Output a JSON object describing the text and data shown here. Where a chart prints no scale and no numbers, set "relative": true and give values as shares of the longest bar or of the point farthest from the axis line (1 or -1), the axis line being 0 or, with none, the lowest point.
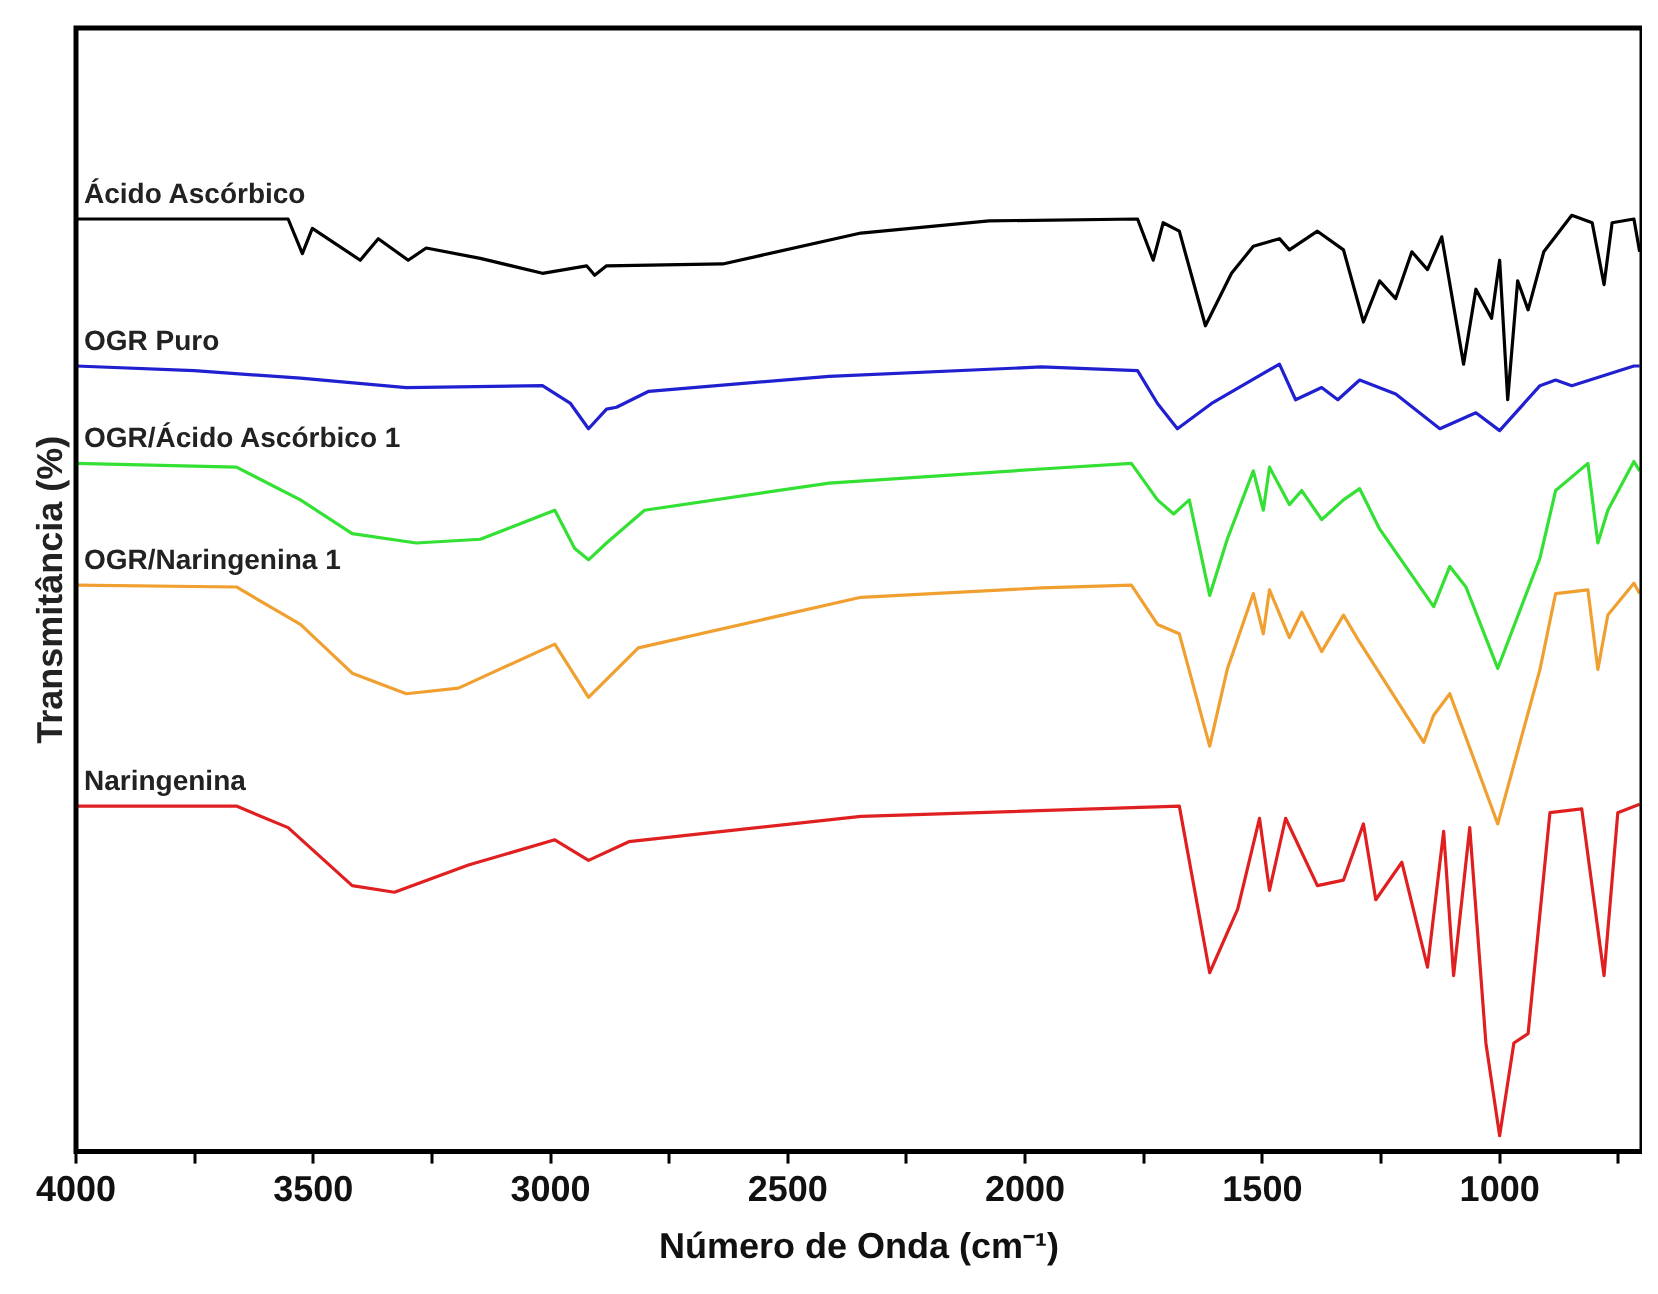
{
  "chart_data": {
    "type": "line",
    "relative": true,
    "xlabel": "Número de Onda (cm⁻¹)",
    "ylabel": "Transmitância (%)",
    "xlim": [
      4000,
      700
    ],
    "xticks": [
      4000,
      {
        "value": 3750,
        "label": null
      },
      3500,
      {
        "value": 3250,
        "label": null
      },
      3000,
      {
        "value": 2750,
        "label": null
      },
      2500,
      {
        "value": 2250,
        "label": null
      },
      2000,
      {
        "value": 1750,
        "label": null
      },
      1500,
      {
        "value": 1250,
        "label": null
      },
      1000,
      {
        "value": 750,
        "label": null
      }
    ],
    "grid": false,
    "legend": false,
    "marker": "none",
    "series": [
      {
        "name": "Ácido Ascórbico",
        "color": "#000000",
        "x": [
          4000,
          3553,
          3523,
          3502,
          3401,
          3363,
          3300,
          3262,
          3148,
          3017,
          2924,
          2907,
          2882,
          2637,
          2346,
          2076,
          1763,
          1730,
          1709,
          1675,
          1620,
          1565,
          1519,
          1464,
          1443,
          1384,
          1329,
          1287,
          1253,
          1219,
          1185,
          1152,
          1122,
          1076,
          1050,
          1017,
          1000,
          983,
          962,
          940,
          907,
          848,
          805,
          780,
          763,
          717,
          705
        ],
        "values": [
          0.996,
          0.996,
          0.959,
          0.986,
          0.952,
          0.975,
          0.952,
          0.965,
          0.954,
          0.938,
          0.946,
          0.936,
          0.946,
          0.948,
          0.981,
          0.994,
          0.996,
          0.952,
          0.992,
          0.983,
          0.882,
          0.938,
          0.967,
          0.975,
          0.963,
          0.983,
          0.963,
          0.886,
          0.93,
          0.911,
          0.961,
          0.942,
          0.977,
          0.841,
          0.921,
          0.89,
          0.952,
          0.803,
          0.93,
          0.899,
          0.961,
          1,
          0.992,
          0.926,
          0.992,
          0.996,
          0.961
        ]
      },
      {
        "name": "OGR Puro",
        "color": "#2020d0",
        "x": [
          4000,
          3751,
          3527,
          3304,
          3017,
          2958,
          2920,
          2882,
          2861,
          2793,
          2413,
          1966,
          1763,
          1721,
          1679,
          1607,
          1464,
          1430,
          1375,
          1341,
          1295,
          1219,
          1126,
          1050,
          1000,
          915,
          882,
          848,
          717,
          705
        ],
        "values": [
          0.839,
          0.834,
          0.826,
          0.816,
          0.818,
          0.799,
          0.772,
          0.793,
          0.795,
          0.812,
          0.828,
          0.838,
          0.834,
          0.799,
          0.772,
          0.799,
          0.841,
          0.803,
          0.816,
          0.803,
          0.824,
          0.809,
          0.772,
          0.789,
          0.77,
          0.818,
          0.824,
          0.818,
          0.839,
          0.839
        ]
      },
      {
        "name": "OGR/Ácido Ascórbico 1",
        "color": "#33e033",
        "x": [
          4000,
          3662,
          3527,
          3418,
          3283,
          3148,
          2991,
          2949,
          2920,
          2882,
          2802,
          2413,
          1966,
          1776,
          1721,
          1687,
          1654,
          1611,
          1574,
          1519,
          1498,
          1485,
          1443,
          1417,
          1375,
          1329,
          1295,
          1253,
          1139,
          1105,
          1071,
          1004,
          915,
          882,
          814,
          793,
          772,
          717,
          705
        ],
        "values": [
          0.735,
          0.731,
          0.696,
          0.66,
          0.65,
          0.654,
          0.685,
          0.644,
          0.632,
          0.65,
          0.685,
          0.714,
          0.729,
          0.735,
          0.696,
          0.681,
          0.696,
          0.594,
          0.654,
          0.727,
          0.685,
          0.731,
          0.691,
          0.706,
          0.675,
          0.696,
          0.708,
          0.665,
          0.582,
          0.625,
          0.603,
          0.516,
          0.634,
          0.706,
          0.735,
          0.65,
          0.685,
          0.737,
          0.727
        ]
      },
      {
        "name": "OGR/Naringenina 1",
        "color": "#f0a030",
        "x": [
          4000,
          3662,
          3527,
          3418,
          3304,
          3194,
          2991,
          2920,
          2815,
          2346,
          1966,
          1776,
          1721,
          1675,
          1611,
          1574,
          1519,
          1498,
          1485,
          1443,
          1417,
          1375,
          1329,
          1295,
          1160,
          1139,
          1105,
          1004,
          915,
          882,
          814,
          793,
          772,
          717,
          705
        ],
        "values": [
          0.605,
          0.603,
          0.563,
          0.511,
          0.489,
          0.495,
          0.542,
          0.485,
          0.538,
          0.592,
          0.602,
          0.605,
          0.563,
          0.553,
          0.433,
          0.515,
          0.596,
          0.553,
          0.6,
          0.549,
          0.576,
          0.534,
          0.573,
          0.544,
          0.437,
          0.466,
          0.489,
          0.35,
          0.515,
          0.596,
          0.6,
          0.515,
          0.573,
          0.607,
          0.596
        ]
      },
      {
        "name": "Naringenina",
        "color": "#e02020",
        "x": [
          4000,
          3662,
          3553,
          3418,
          3329,
          3173,
          2991,
          2920,
          2835,
          2346,
          1675,
          1611,
          1552,
          1506,
          1485,
          1451,
          1384,
          1329,
          1287,
          1261,
          1206,
          1152,
          1118,
          1097,
          1063,
          1029,
          1000,
          970,
          940,
          894,
          827,
          780,
          751,
          705
        ],
        "values": [
          0.369,
          0.369,
          0.346,
          0.284,
          0.277,
          0.306,
          0.333,
          0.311,
          0.331,
          0.358,
          0.369,
          0.191,
          0.259,
          0.356,
          0.279,
          0.356,
          0.284,
          0.29,
          0.35,
          0.269,
          0.309,
          0.197,
          0.342,
          0.188,
          0.346,
          0.116,
          0.017,
          0.116,
          0.126,
          0.362,
          0.366,
          0.188,
          0.362,
          0.371
        ]
      }
    ]
  }
}
